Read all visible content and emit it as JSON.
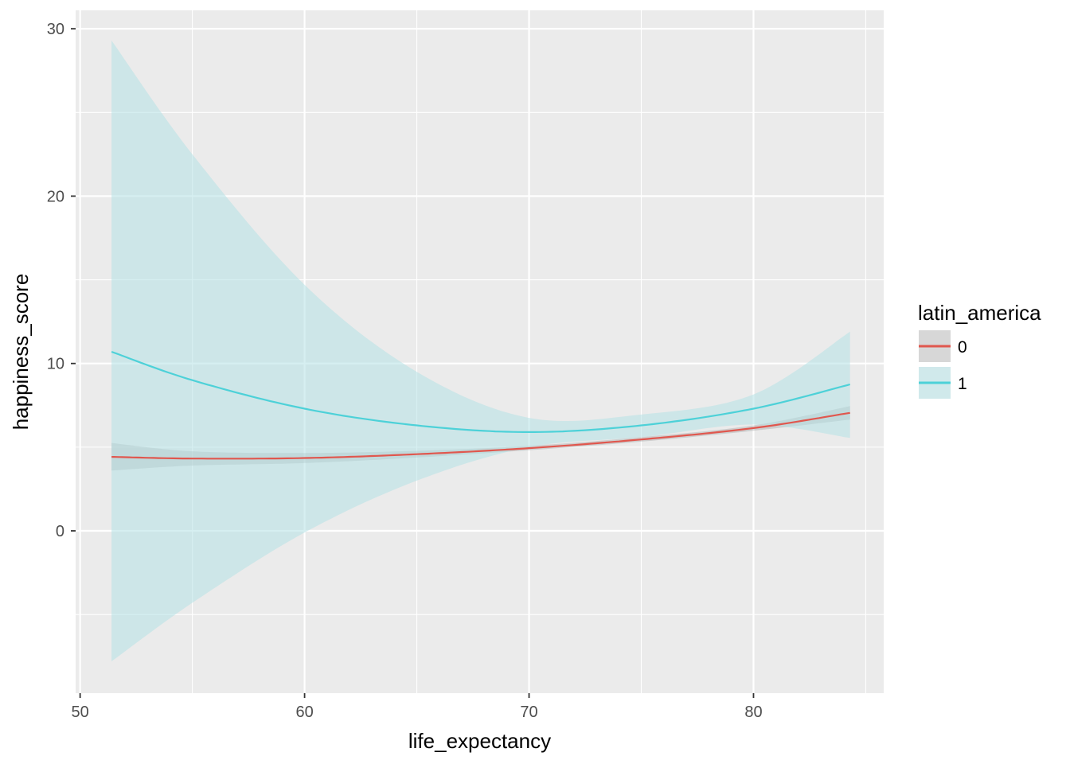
{
  "chart_data": {
    "type": "line",
    "xlabel": "life_expectancy",
    "ylabel": "happiness_score",
    "xlim": [
      49.8,
      85.8
    ],
    "ylim": [
      -9.7,
      31.1
    ],
    "x_ticks": [
      50,
      60,
      70,
      80
    ],
    "x_tick_labels": [
      "50",
      "60",
      "70",
      "80"
    ],
    "y_ticks": [
      0,
      10,
      20,
      30
    ],
    "y_tick_labels": [
      "0",
      "10",
      "20",
      "30"
    ],
    "grid": true,
    "panel_background": "#ebebeb",
    "legend": {
      "title": "latin_america",
      "position": "right",
      "entries": [
        "0",
        "1"
      ]
    },
    "series": [
      {
        "name": "0",
        "color": "#e0574e",
        "fill": "#f4b5b0",
        "x": [
          51.4,
          55,
          60,
          65,
          70,
          75,
          80,
          84.3
        ],
        "y": [
          4.42,
          4.32,
          4.35,
          4.58,
          4.94,
          5.46,
          6.14,
          7.05
        ],
        "ci_low": [
          3.6,
          3.9,
          4.05,
          4.38,
          4.82,
          5.33,
          5.98,
          6.65
        ],
        "ci_high": [
          5.25,
          4.75,
          4.65,
          4.78,
          5.08,
          5.6,
          6.3,
          7.45
        ]
      },
      {
        "name": "1",
        "color": "#4dd1d8",
        "fill": "#b4e2e5",
        "x": [
          51.4,
          55,
          60,
          65,
          70,
          75,
          80,
          84.3
        ],
        "y": [
          10.7,
          9.0,
          7.3,
          6.3,
          5.9,
          6.3,
          7.3,
          8.75
        ],
        "ci_low": [
          -7.8,
          -4.3,
          -0.1,
          3.0,
          5.0,
          5.6,
          6.35,
          5.55
        ],
        "ci_high": [
          29.3,
          22.5,
          14.7,
          9.5,
          6.75,
          6.95,
          8.15,
          11.9
        ]
      }
    ]
  }
}
